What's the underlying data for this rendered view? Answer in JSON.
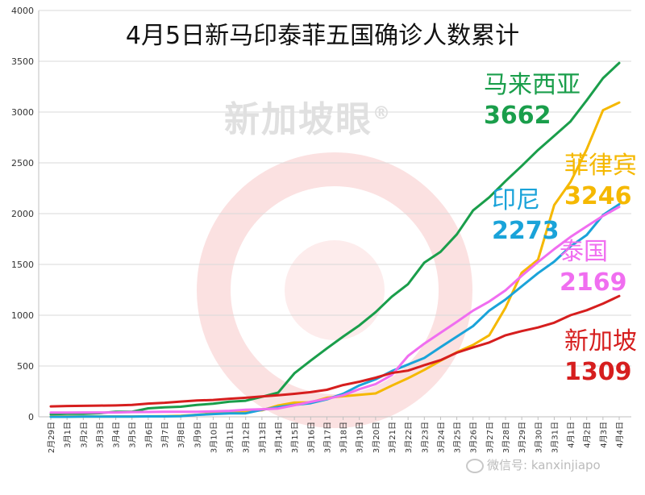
{
  "watermark": {
    "logo_text": "新加坡眼",
    "registered_mark": "®",
    "footer_text": "微信号: kanxinjiapo"
  },
  "chart_data": {
    "type": "line",
    "title": "4月5日新马印泰菲五国确诊人数累计",
    "xlabel": "",
    "ylabel": "",
    "ylim": [
      0,
      4000
    ],
    "yticks": [
      0,
      500,
      1000,
      1500,
      2000,
      2500,
      3000,
      3500,
      4000
    ],
    "grid": true,
    "legend": "inline labels at line ends",
    "categories": [
      "2月29日",
      "3月1日",
      "3月2日",
      "3月3日",
      "3月4日",
      "3月5日",
      "3月6日",
      "3月7日",
      "3月8日",
      "3月9日",
      "3月10日",
      "3月11日",
      "3月12日",
      "3月13日",
      "3月14日",
      "3月15日",
      "3月16日",
      "3月17日",
      "3月18日",
      "3月19日",
      "3月20日",
      "3月21日",
      "3月22日",
      "3月23日",
      "3月24日",
      "3月25日",
      "3月26日",
      "3月27日",
      "3月28日",
      "3月29日",
      "3月30日",
      "3月31日",
      "4月1日",
      "4月2日",
      "4月3日",
      "4月4日"
    ],
    "series": [
      {
        "name": "马来西亚",
        "label_value": "3662",
        "color": "#1a9e4b",
        "values": [
          25,
          29,
          29,
          36,
          50,
          50,
          83,
          93,
          99,
          117,
          129,
          149,
          158,
          197,
          238,
          428,
          553,
          673,
          790,
          900,
          1030,
          1183,
          1306,
          1518,
          1624,
          1796,
          2031,
          2161,
          2320,
          2470,
          2626,
          2766,
          2908,
          3116,
          3333,
          3483
        ]
      },
      {
        "name": "菲律宾",
        "label_value": "3246",
        "color": "#f5b800",
        "values": [
          3,
          3,
          3,
          3,
          3,
          3,
          5,
          6,
          10,
          20,
          33,
          49,
          52,
          64,
          111,
          140,
          142,
          187,
          202,
          217,
          230,
          307,
          380,
          462,
          552,
          636,
          707,
          803,
          1075,
          1418,
          1546,
          2084,
          2311,
          2633,
          3018,
          3094
        ]
      },
      {
        "name": "印尼",
        "label_value": "2273",
        "color": "#1aa3d9",
        "values": [
          0,
          0,
          2,
          2,
          2,
          2,
          4,
          4,
          6,
          19,
          27,
          34,
          34,
          69,
          96,
          117,
          134,
          172,
          227,
          309,
          369,
          450,
          514,
          579,
          686,
          790,
          893,
          1046,
          1155,
          1285,
          1414,
          1528,
          1677,
          1790,
          1986,
          2092
        ]
      },
      {
        "name": "泰国",
        "label_value": "2169",
        "color": "#f06ef0",
        "values": [
          42,
          42,
          43,
          43,
          43,
          47,
          48,
          50,
          50,
          50,
          53,
          59,
          70,
          75,
          82,
          114,
          147,
          177,
          212,
          272,
          322,
          411,
          599,
          721,
          827,
          934,
          1045,
          1136,
          1245,
          1388,
          1524,
          1651,
          1771,
          1875,
          1978,
          2067
        ]
      },
      {
        "name": "新加坡",
        "label_value": "1309",
        "color": "#d61e1e",
        "values": [
          102,
          106,
          108,
          110,
          112,
          117,
          130,
          138,
          150,
          160,
          166,
          178,
          187,
          200,
          212,
          226,
          243,
          266,
          313,
          345,
          385,
          432,
          455,
          509,
          558,
          631,
          683,
          732,
          802,
          844,
          879,
          926,
          1000,
          1049,
          1114,
          1189
        ]
      }
    ]
  }
}
